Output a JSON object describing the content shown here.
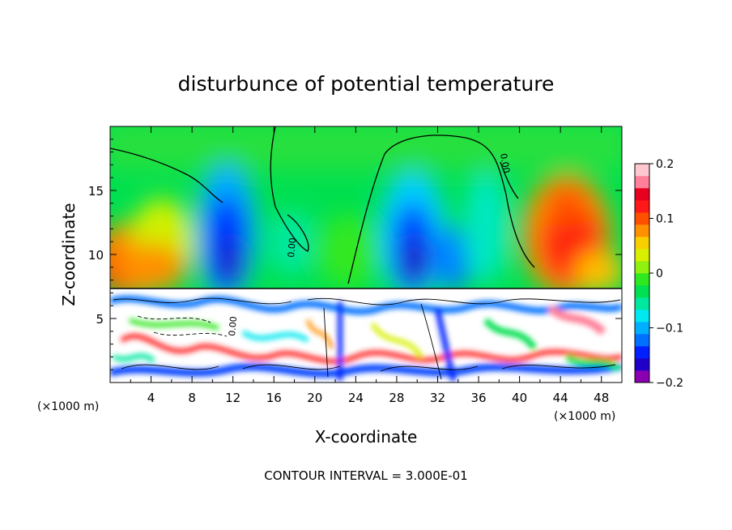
{
  "chart_data": {
    "type": "heatmap",
    "title": "disturbunce of potential temperature",
    "xlabel": "X-coordinate",
    "ylabel": "Z-coordinate",
    "x_unit_left": "(×1000 m)",
    "x_unit_right": "(×1000 m)",
    "xlim": [
      0,
      50
    ],
    "ylim": [
      0,
      20
    ],
    "x_ticks": [
      4,
      8,
      12,
      16,
      20,
      24,
      28,
      32,
      36,
      40,
      44,
      48
    ],
    "y_ticks": [
      5,
      10,
      15
    ],
    "colorbar": {
      "min": -0.2,
      "max": 0.2,
      "ticks": [
        -0.2,
        -0.1,
        0,
        0.1,
        0.2
      ],
      "tick_labels": [
        "−0.2",
        "−0.1",
        "0",
        "0.1",
        "0.2"
      ],
      "colors": [
        "#8a00b0",
        "#2000c8",
        "#0020ff",
        "#0070ff",
        "#00b0ff",
        "#00e8f0",
        "#00e8a0",
        "#00e050",
        "#30e820",
        "#90f010",
        "#d8f000",
        "#f8d000",
        "#ff9000",
        "#ff5000",
        "#ff1818",
        "#e80020",
        "#ff8098",
        "#ffc8d0"
      ]
    },
    "contour_labels": [
      "0.00",
      "0.00",
      "0.00"
    ],
    "footer": "CONTOUR INTERVAL = 3.000E-01"
  }
}
